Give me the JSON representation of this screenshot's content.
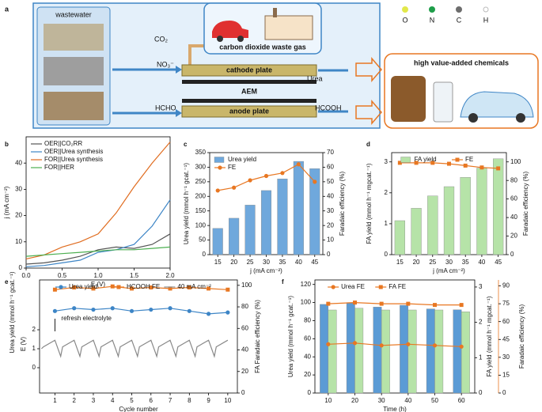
{
  "schematic": {
    "panel": "a",
    "wastewater": "wastewater",
    "co2": "CO₂",
    "gas": "carbon dioxide waste gas",
    "atoms": [
      "O",
      "N",
      "C",
      "H"
    ],
    "no3": "NO₃⁻",
    "cathode": "cathode plate",
    "urea": "Urea",
    "aem": "AEM",
    "hcho": "HCHO",
    "anode": "anode plate",
    "hcooh": "HCOOH",
    "chemicals": "high value-added chemicals"
  },
  "chart_data": [
    {
      "panel": "b",
      "type": "line",
      "xlabel": "E (V)",
      "ylabel": "j (mA cm⁻²)",
      "x": [
        0,
        0.25,
        0.5,
        0.75,
        1,
        1.25,
        1.5,
        1.75,
        2
      ],
      "xlim": [
        0,
        2
      ],
      "xticks": [
        {
          "value": 0,
          "label": "0.0"
        },
        0.5,
        {
          "value": 1,
          "label": "1.0"
        },
        1.5,
        {
          "value": 2,
          "label": "2.0"
        }
      ],
      "ylim": [
        0,
        50
      ],
      "yticks": [
        0,
        10,
        20,
        30,
        40
      ],
      "legend": "upper left",
      "series": [
        {
          "name": "OER||CO₂RR",
          "color": "#555555",
          "values": [
            1.5,
            2,
            3,
            4.5,
            7,
            8,
            7.5,
            9,
            13
          ]
        },
        {
          "name": "OER||Urea synthesis",
          "color": "#3d85c6",
          "values": [
            0.5,
            1,
            2,
            3,
            6,
            7,
            9,
            16,
            26
          ]
        },
        {
          "name": "FOR||Urea synthesis",
          "color": "#e06c1f",
          "values": [
            3.5,
            5,
            8,
            10,
            13,
            21,
            31,
            40,
            48
          ]
        },
        {
          "name": "FOR||HER",
          "color": "#4caf50",
          "values": [
            4.5,
            5,
            5.5,
            6,
            6.5,
            7,
            7,
            7.5,
            8
          ]
        }
      ]
    },
    {
      "panel": "c",
      "type": "bar",
      "categories": [
        "15",
        "20",
        "25",
        "30",
        "35",
        "40",
        "45"
      ],
      "xlabel": "j (mA cm⁻²)",
      "ylabel": "Urea yield (mmol h⁻¹ gcat.⁻¹)",
      "y2label": "Faradaic efficiency (%)",
      "ylim": [
        0,
        350
      ],
      "yticks": [
        0,
        50,
        100,
        150,
        200,
        250,
        300,
        350
      ],
      "y2lim": [
        0,
        70
      ],
      "y2ticks": [
        0,
        10,
        20,
        30,
        40,
        50,
        60,
        70
      ],
      "legend": "upper left",
      "series": [
        {
          "name": "Urea yield",
          "kind": "bar",
          "color": "#6fa8dc",
          "values": [
            90,
            125,
            170,
            220,
            260,
            320,
            295
          ]
        },
        {
          "name": "FE",
          "kind": "line",
          "axis": "y2",
          "marker": "circle",
          "color": "#e87722",
          "values": [
            44,
            46,
            51,
            54,
            56,
            62,
            50
          ]
        }
      ]
    },
    {
      "panel": "d",
      "type": "bar",
      "categories": [
        "15",
        "20",
        "25",
        "30",
        "35",
        "40",
        "45"
      ],
      "xlabel": "j (mA cm⁻²)",
      "ylabel": "FA yield (mmol h⁻¹ mgcat.⁻¹)",
      "y2label": "Faradaic efficiency (%)",
      "ylim": [
        0,
        3.3
      ],
      "yticks": [
        0,
        1,
        2,
        3
      ],
      "y2lim": [
        0,
        110
      ],
      "y2ticks": [
        0,
        20,
        40,
        60,
        80,
        100
      ],
      "legend": "upper center",
      "series": [
        {
          "name": "FA yield",
          "kind": "bar",
          "color": "#b6e3a8",
          "values": [
            1.1,
            1.5,
            1.9,
            2.2,
            2.5,
            2.8,
            3.1
          ]
        },
        {
          "name": "FE",
          "kind": "line",
          "axis": "y2",
          "marker": "square",
          "color": "#e87722",
          "values": [
            99,
            99,
            99,
            98,
            96,
            94,
            93
          ]
        }
      ]
    },
    {
      "panel": "e",
      "type": "line",
      "xlabel": "Cycle number",
      "ylabel": "Urea yield (mmol h⁻¹ gcat.⁻¹)",
      "y2label": "FA Faradaic efficiency (%)",
      "y3label": "E (V)",
      "annotation": "refresh electrolyte",
      "x": [
        1,
        2,
        3,
        4,
        5,
        6,
        7,
        8,
        9,
        10
      ],
      "xlim": [
        0.2,
        10.5
      ],
      "xticks": [
        1,
        2,
        3,
        4,
        5,
        6,
        7,
        8,
        9,
        10
      ],
      "ylim": [
        0,
        400
      ],
      "y2lim": [
        0,
        105
      ],
      "y2ticks": [
        0,
        20,
        40,
        60,
        80,
        100
      ],
      "y3lim": [
        0,
        2.5
      ],
      "y3ticks": [
        0,
        1,
        2
      ],
      "legend": "upper center",
      "series": [
        {
          "name": "Urea yield",
          "marker": "circle",
          "color": "#3d85c6",
          "values": [
            290,
            300,
            295,
            300,
            290,
            295,
            300,
            290,
            280,
            285
          ]
        },
        {
          "name": "HCOOH FE",
          "axis": "y2",
          "marker": "square",
          "color": "#e87722",
          "values": [
            96,
            98,
            97,
            99,
            97,
            98,
            97,
            98,
            97,
            96
          ]
        },
        {
          "name": "40 mA cm⁻²",
          "axis": "y3",
          "color": "#888888",
          "x": [
            0.3,
            0.4,
            1.0,
            1.3,
            1.4,
            2.0,
            2.3,
            2.4,
            3.0,
            3.3,
            3.4,
            4.0,
            4.3,
            4.4,
            5.0,
            5.3,
            5.4,
            6.0,
            6.3,
            6.4,
            7.0,
            7.3,
            7.4,
            8.0,
            8.3,
            8.4,
            9.0,
            9.3,
            9.4,
            10.0
          ],
          "values": [
            1.0,
            1.1,
            1.45,
            0.6,
            1.1,
            1.45,
            0.6,
            1.1,
            1.45,
            0.6,
            1.1,
            1.45,
            0.6,
            1.1,
            1.45,
            0.6,
            1.1,
            1.45,
            0.6,
            1.1,
            1.45,
            0.6,
            1.1,
            1.45,
            0.6,
            1.1,
            1.45,
            0.6,
            1.1,
            1.45
          ]
        }
      ]
    },
    {
      "panel": "f",
      "type": "bar",
      "categories": [
        "10",
        "20",
        "30",
        "40",
        "50",
        "60"
      ],
      "xlabel": "Time (h)",
      "ylabel": "Urea yield (mmol h⁻¹ gcat.⁻¹)",
      "y2label": "FA yield (mmol h⁻¹ mgcat.⁻¹)",
      "y3label": "Faradaic efficiency (%)",
      "ylim": [
        0,
        125
      ],
      "yticks": [
        0,
        20,
        40,
        60,
        80,
        100,
        120
      ],
      "y2lim": [
        0,
        3.2
      ],
      "y2ticks": [
        0,
        1,
        2,
        3
      ],
      "y3lim": [
        0,
        95
      ],
      "y3ticks": [
        0,
        15,
        30,
        45,
        60,
        75,
        90
      ],
      "legend": "upper center",
      "series": [
        {
          "kind": "bar",
          "color": "#5b9bd5",
          "values": [
            98,
            100,
            95,
            97,
            93,
            92
          ]
        },
        {
          "kind": "bar",
          "axis": "y2",
          "color": "#b6e3a8",
          "values": [
            2.35,
            2.4,
            2.35,
            2.35,
            2.35,
            2.3
          ]
        },
        {
          "name": "Urea FE",
          "kind": "line",
          "axis": "y3",
          "marker": "circle",
          "color": "#e87722",
          "values": [
            41,
            42,
            40,
            41,
            40,
            39
          ]
        },
        {
          "name": "FA FE",
          "kind": "line",
          "axis": "y3",
          "marker": "square",
          "color": "#e87722",
          "values": [
            75,
            76,
            75,
            75,
            74,
            74
          ]
        }
      ]
    }
  ]
}
